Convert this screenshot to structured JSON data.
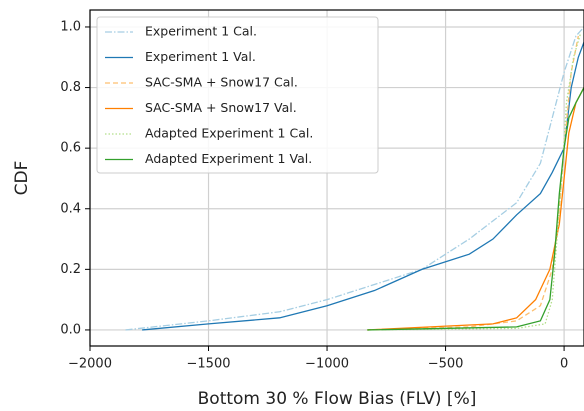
{
  "chart_data": {
    "type": "line",
    "x_label": "Bottom 30 % Flow Bias (FLV) [%]",
    "y_label": "CDF",
    "xlim": [
      -2000,
      84
    ],
    "ylim": [
      -0.053,
      1.056
    ],
    "xticks": [
      {
        "value": -2000,
        "label": "−2000"
      },
      {
        "value": -1500,
        "label": "−1500"
      },
      {
        "value": -1000,
        "label": "−1000"
      },
      {
        "value": -500,
        "label": "−500"
      },
      0
    ],
    "yticks": [
      {
        "value": 0,
        "label": "0.0"
      },
      {
        "value": 0.2,
        "label": "0.2"
      },
      {
        "value": 0.4,
        "label": "0.4"
      },
      {
        "value": 0.6,
        "label": "0.6"
      },
      {
        "value": 0.8,
        "label": "0.8"
      },
      {
        "value": 1,
        "label": "1.0"
      }
    ],
    "grid": true,
    "legend": "upper left",
    "series": [
      {
        "name": "Experiment 1 Cal.",
        "color": "#a6cee3",
        "linestyle": "dashdot",
        "x": [
          -1850,
          -1500,
          -1200,
          -1000,
          -800,
          -600,
          -400,
          -200,
          -100,
          -50,
          0,
          50,
          84
        ],
        "values": [
          0,
          0.03,
          0.06,
          0.1,
          0.15,
          0.2,
          0.3,
          0.42,
          0.55,
          0.7,
          0.85,
          0.97,
          1.0
        ]
      },
      {
        "name": "Experiment 1 Val.",
        "color": "#1f78b4",
        "linestyle": "solid",
        "x": [
          -1780,
          -1500,
          -1200,
          -1000,
          -800,
          -600,
          -400,
          -300,
          -200,
          -100,
          -50,
          0,
          30,
          60,
          84
        ],
        "values": [
          0,
          0.02,
          0.04,
          0.08,
          0.13,
          0.2,
          0.25,
          0.3,
          0.38,
          0.45,
          0.52,
          0.6,
          0.8,
          0.9,
          0.95
        ]
      },
      {
        "name": "SAC-SMA + Snow17 Cal.",
        "color": "#fdbf6f",
        "linestyle": "dashed",
        "x": [
          -830,
          -400,
          -200,
          -100,
          -50,
          -20,
          0,
          30,
          60
        ],
        "values": [
          0,
          0.01,
          0.03,
          0.08,
          0.2,
          0.4,
          0.6,
          0.85,
          0.97
        ]
      },
      {
        "name": "SAC-SMA + Snow17 Val.",
        "color": "#ff7f00",
        "linestyle": "solid",
        "x": [
          -830,
          -300,
          -200,
          -120,
          -60,
          -20,
          0,
          20,
          50,
          84
        ],
        "values": [
          0,
          0.02,
          0.04,
          0.1,
          0.2,
          0.35,
          0.5,
          0.65,
          0.75,
          0.8
        ]
      },
      {
        "name": "Adapted Experiment 1 Cal.",
        "color": "#b2df8a",
        "linestyle": "dotted",
        "x": [
          -830,
          -200,
          -80,
          -50,
          -30,
          -10,
          10,
          40,
          70
        ],
        "values": [
          0,
          0.005,
          0.02,
          0.1,
          0.3,
          0.5,
          0.75,
          0.9,
          0.98
        ]
      },
      {
        "name": "Adapted Experiment 1 Val.",
        "color": "#33a02c",
        "linestyle": "solid",
        "x": [
          -830,
          -200,
          -100,
          -60,
          -40,
          -20,
          0,
          20,
          50,
          84
        ],
        "values": [
          0,
          0.01,
          0.03,
          0.1,
          0.25,
          0.45,
          0.6,
          0.7,
          0.75,
          0.8
        ]
      }
    ]
  }
}
